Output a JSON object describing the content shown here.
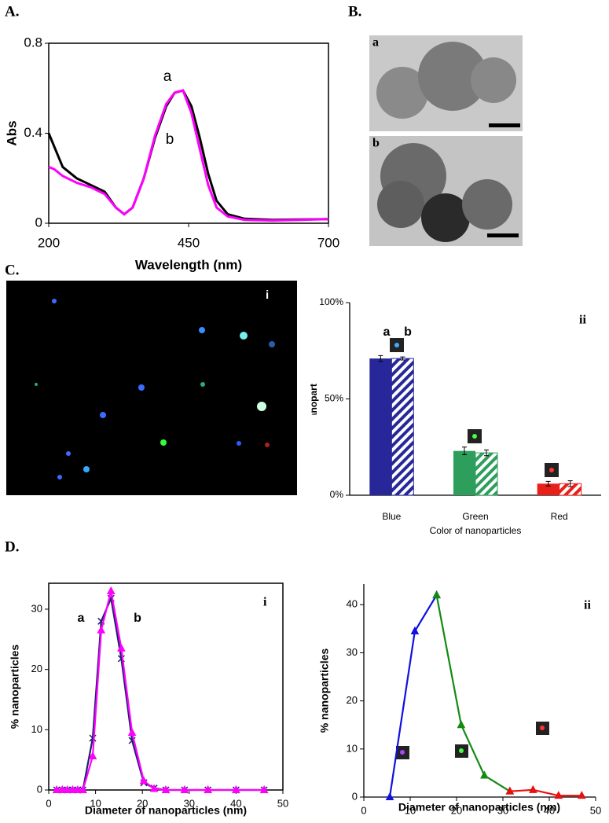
{
  "panel_labels": [
    "A.",
    "B.",
    "C.",
    "D."
  ],
  "images": {
    "tem": [
      "a",
      "b"
    ],
    "fluorescence": "i"
  },
  "chart_data": [
    {
      "type": "line",
      "xlabel": "Wavelength (nm)",
      "ylabel": "Abs",
      "x": [
        200,
        210,
        225,
        250,
        275,
        300,
        320,
        335,
        350,
        370,
        390,
        410,
        425,
        440,
        455,
        470,
        485,
        500,
        520,
        550,
        600,
        700
      ],
      "xlim": [
        200,
        700
      ],
      "xticks": [
        200,
        450,
        700
      ],
      "ylim": [
        0,
        0.8
      ],
      "yticks": [
        0,
        0.4,
        0.8
      ],
      "series": [
        {
          "name": "a",
          "color": "#000000",
          "values": [
            0.4,
            0.34,
            0.25,
            0.2,
            0.17,
            0.14,
            0.07,
            0.04,
            0.07,
            0.2,
            0.38,
            0.52,
            0.58,
            0.59,
            0.52,
            0.38,
            0.22,
            0.1,
            0.04,
            0.02,
            0.015,
            0.018
          ]
        },
        {
          "name": "b",
          "color": "#ff00ff",
          "values": [
            0.25,
            0.24,
            0.21,
            0.18,
            0.16,
            0.13,
            0.07,
            0.04,
            0.07,
            0.2,
            0.39,
            0.53,
            0.58,
            0.59,
            0.49,
            0.33,
            0.17,
            0.07,
            0.03,
            0.015,
            0.012,
            0.018
          ]
        }
      ]
    },
    {
      "type": "bar",
      "label": "ii",
      "xlabel": "Color of nanoparticles",
      "ylabel": "% nanoparticles",
      "categories": [
        "Blue",
        "Green",
        "Red"
      ],
      "colors": [
        "#27279a",
        "#2e9e5c",
        "#e8201a"
      ],
      "ylim": [
        0,
        100
      ],
      "yticks": [
        {
          "value": 0,
          "label": "0%"
        },
        {
          "value": 50,
          "label": "50%"
        },
        {
          "value": 100,
          "label": "100%"
        }
      ],
      "series": [
        {
          "name": "a",
          "pattern": "solid",
          "values": [
            71,
            23,
            6
          ],
          "errors": [
            1.5,
            2,
            1.2
          ]
        },
        {
          "name": "b",
          "pattern": "hatched",
          "values": [
            71,
            22,
            6
          ],
          "errors": [
            0.8,
            1.5,
            1.5
          ]
        }
      ]
    },
    {
      "type": "line",
      "label": "i",
      "xlabel": "Diameter of nanoparticles (nm)",
      "ylabel": "% nanoparticles",
      "x": [
        1.7,
        2.9,
        4,
        5.1,
        6.2,
        7.3,
        9.4,
        11.2,
        13.3,
        15.5,
        17.8,
        20.3,
        22.5,
        25,
        29,
        34,
        40,
        46
      ],
      "xlim": [
        0,
        50
      ],
      "xticks": [
        0,
        10,
        20,
        30,
        40,
        50
      ],
      "ylim": [
        0,
        34.3
      ],
      "yticks": [
        0,
        10,
        20,
        30
      ],
      "series": [
        {
          "name": "a",
          "color": "#1f1f6e",
          "marker": "x",
          "values": [
            0,
            0,
            0,
            0,
            0,
            0,
            8.6,
            28,
            31.8,
            21.8,
            8.2,
            1.2,
            0.3,
            0,
            0,
            0,
            0,
            0
          ]
        },
        {
          "name": "b",
          "color": "#ff00ff",
          "marker": "triangle",
          "values": [
            0,
            0,
            0,
            0,
            0,
            0,
            5.6,
            26.5,
            33,
            23.5,
            9.5,
            1.5,
            0.2,
            0,
            0,
            0,
            0,
            0
          ]
        }
      ]
    },
    {
      "type": "line",
      "label": "ii",
      "xlabel": "Diameter of nanoparticles (nm)",
      "ylabel": "% nanoparticles",
      "xlim": [
        0,
        50
      ],
      "xticks": [
        0,
        10,
        20,
        30,
        40,
        50
      ],
      "ylim": [
        0,
        44.3
      ],
      "yticks": [
        0,
        10,
        20,
        30,
        40
      ],
      "series": [
        {
          "color": "#1010e0",
          "marker": "triangle",
          "x": [
            5.6,
            11,
            15.7
          ],
          "values": [
            0,
            34.5,
            42
          ]
        },
        {
          "color": "#138a13",
          "marker": "triangle",
          "x": [
            15.7,
            21,
            26,
            31.5
          ],
          "values": [
            42,
            15,
            4.5,
            1.2
          ]
        },
        {
          "color": "#e81010",
          "marker": "triangle",
          "x": [
            31.5,
            36.5,
            42,
            47
          ],
          "values": [
            1.2,
            1.5,
            0.3,
            0.3
          ]
        }
      ]
    }
  ]
}
